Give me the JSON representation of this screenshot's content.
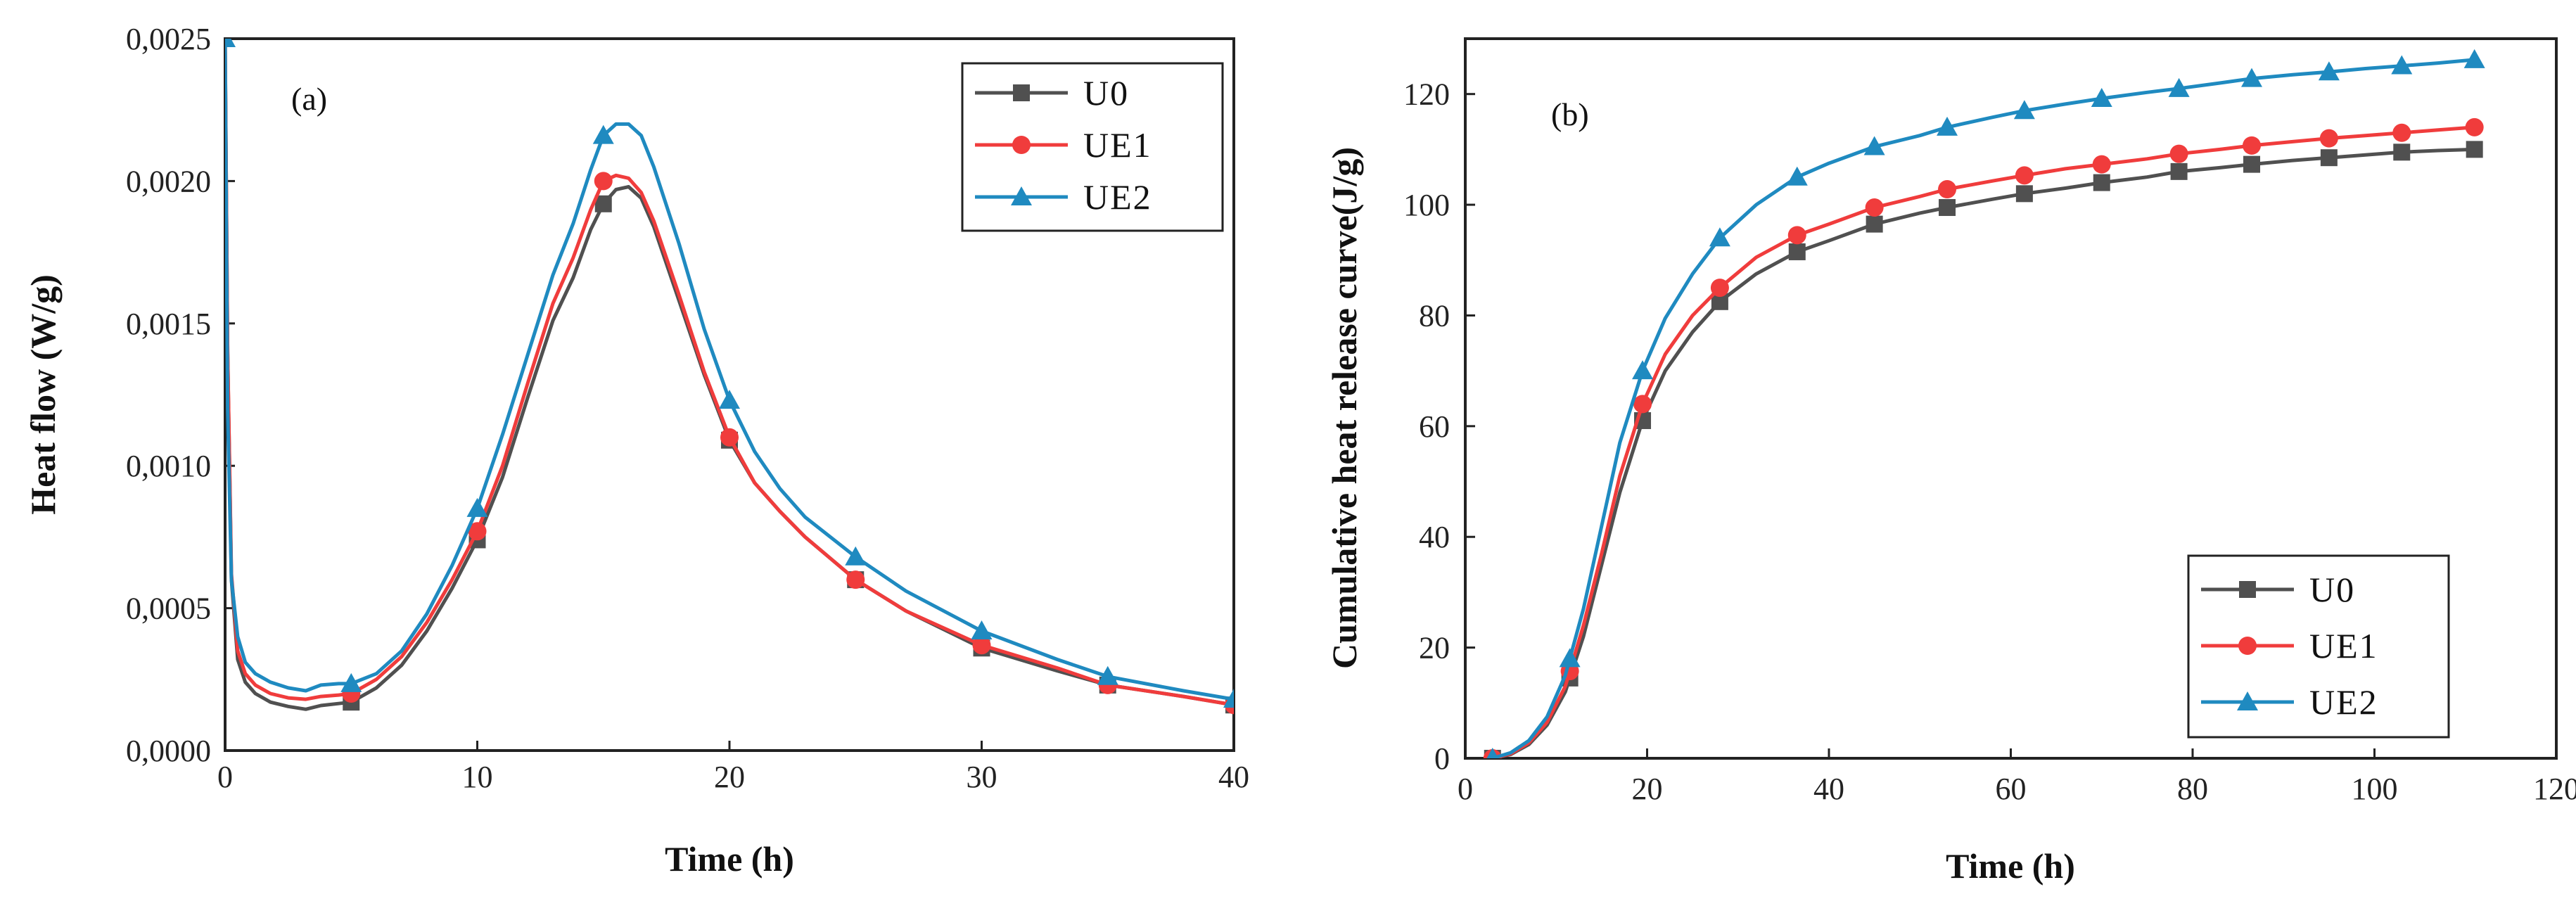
{
  "chart_data": [
    {
      "panel": "(a)",
      "type": "line",
      "xlabel": "Time (h)",
      "ylabel": "Heat  flow (W/g)",
      "xlim": [
        0,
        40
      ],
      "ylim": [
        0,
        0.0025
      ],
      "x_ticks": [
        0,
        10,
        20,
        30,
        40
      ],
      "x_tick_labels": [
        "0",
        "10",
        "20",
        "30",
        "40"
      ],
      "y_ticks": [
        0,
        0.0005,
        0.001,
        0.0015,
        0.002,
        0.0025
      ],
      "y_tick_labels": [
        "0,0000",
        "0,0005",
        "0,0010",
        "0,0015",
        "0,0020",
        "0,0025"
      ],
      "grid": false,
      "legend_position": "top-right",
      "series": [
        {
          "name": "U0",
          "color": "#505050",
          "marker": "square",
          "x": [
            0,
            0.1,
            0.25,
            0.5,
            0.8,
            1.2,
            1.8,
            2.5,
            3.2,
            3.8,
            4.5,
            5,
            6,
            7,
            8,
            9,
            10,
            11,
            12,
            13,
            13.8,
            14.5,
            15,
            15.5,
            16,
            16.5,
            17,
            18,
            19,
            20,
            21,
            22,
            23,
            25,
            27,
            30,
            33,
            35,
            38,
            40
          ],
          "y": [
            0.0025,
            0.0014,
            0.0006,
            0.00032,
            0.00024,
            0.0002,
            0.00017,
            0.000155,
            0.000145,
            0.000158,
            0.000165,
            0.00017,
            0.00022,
            0.0003,
            0.00042,
            0.00057,
            0.00074,
            0.00096,
            0.00124,
            0.00151,
            0.00166,
            0.00183,
            0.00192,
            0.00197,
            0.00198,
            0.00194,
            0.00184,
            0.00158,
            0.00132,
            0.00109,
            0.00094,
            0.00084,
            0.00075,
            0.0006,
            0.00049,
            0.00036,
            0.00028,
            0.00023,
            0.00019,
            0.00016
          ],
          "markers_x": [
            5,
            10,
            15,
            20,
            25,
            30,
            35,
            40
          ]
        },
        {
          "name": "UE1",
          "color": "#f03c3c",
          "marker": "circle",
          "x": [
            0,
            0.1,
            0.25,
            0.5,
            0.8,
            1.2,
            1.8,
            2.5,
            3.2,
            3.8,
            4.5,
            5,
            6,
            7,
            8,
            9,
            10,
            11,
            12,
            13,
            13.8,
            14.5,
            15,
            15.5,
            16,
            16.5,
            17,
            18,
            19,
            20,
            21,
            22,
            23,
            25,
            27,
            30,
            33,
            35,
            38,
            40
          ],
          "y": [
            0.0025,
            0.0014,
            0.00062,
            0.00035,
            0.00027,
            0.00023,
            0.0002,
            0.000185,
            0.00018,
            0.00019,
            0.000195,
            0.0002,
            0.00025,
            0.00033,
            0.00045,
            0.0006,
            0.00077,
            0.001,
            0.00129,
            0.00157,
            0.00173,
            0.0019,
            0.002,
            0.00202,
            0.00201,
            0.00196,
            0.00186,
            0.0016,
            0.00133,
            0.0011,
            0.00094,
            0.00084,
            0.00075,
            0.0006,
            0.00049,
            0.00037,
            0.00029,
            0.00023,
            0.00019,
            0.00016
          ],
          "markers_x": [
            5,
            10,
            15,
            20,
            25,
            30,
            35,
            40
          ]
        },
        {
          "name": "UE2",
          "color": "#1f8ac0",
          "marker": "triangle",
          "x": [
            0,
            0.1,
            0.25,
            0.5,
            0.8,
            1.2,
            1.8,
            2.5,
            3.2,
            3.8,
            4.5,
            5,
            6,
            7,
            8,
            9,
            10,
            11,
            12,
            13,
            13.8,
            14.5,
            15,
            15.5,
            16,
            16.5,
            17,
            18,
            19,
            20,
            21,
            22,
            23,
            25,
            27,
            30,
            33,
            35,
            38,
            40
          ],
          "y": [
            0.0025,
            0.0012,
            0.0006,
            0.0004,
            0.00031,
            0.00027,
            0.00024,
            0.00022,
            0.00021,
            0.00023,
            0.000235,
            0.000235,
            0.00027,
            0.00035,
            0.00048,
            0.00065,
            0.00085,
            0.00111,
            0.00139,
            0.00167,
            0.00185,
            0.00204,
            0.00216,
            0.0022,
            0.0022,
            0.00216,
            0.00205,
            0.00178,
            0.00148,
            0.00123,
            0.00105,
            0.00092,
            0.00082,
            0.00068,
            0.00056,
            0.00042,
            0.00032,
            0.00026,
            0.00021,
            0.00018
          ],
          "markers_x": [
            0,
            5,
            10,
            15,
            20,
            25,
            30,
            35,
            40
          ]
        }
      ]
    },
    {
      "panel": "(b)",
      "type": "line",
      "xlabel": "Time (h)",
      "ylabel": "Cumulative heat release curve(J/g)",
      "xlim": [
        0,
        120
      ],
      "ylim": [
        0,
        130
      ],
      "x_ticks": [
        0,
        20,
        40,
        60,
        80,
        100,
        120
      ],
      "x_tick_labels": [
        "0",
        "20",
        "40",
        "60",
        "80",
        "100",
        "120"
      ],
      "y_ticks": [
        0,
        20,
        40,
        60,
        80,
        100,
        120
      ],
      "y_tick_labels": [
        "0",
        "20",
        "40",
        "60",
        "80",
        "100",
        "120"
      ],
      "grid": false,
      "legend_position": "bottom-right",
      "series": [
        {
          "name": "U0",
          "color": "#505050",
          "marker": "square",
          "x": [
            3,
            5,
            7,
            9,
            11,
            13,
            15,
            17,
            19.5,
            22,
            25,
            28,
            32,
            36.5,
            40,
            45,
            50,
            53,
            58,
            61.5,
            66,
            70,
            75,
            78.5,
            83,
            86.5,
            91,
            95,
            99,
            103,
            107,
            111
          ],
          "y": [
            0,
            0.7,
            2.5,
            6,
            12,
            22,
            35,
            48,
            61,
            70,
            77,
            82.5,
            87.5,
            91.5,
            93.5,
            96.5,
            98.5,
            99.5,
            101,
            102,
            103,
            104,
            105,
            106,
            106.7,
            107.3,
            108,
            108.5,
            109,
            109.5,
            109.8,
            110
          ],
          "markers_x": [
            3,
            11.5,
            19.5,
            28,
            36.5,
            45,
            53,
            61.5,
            70,
            78.5,
            86.5,
            95,
            103,
            111
          ]
        },
        {
          "name": "UE1",
          "color": "#f03c3c",
          "marker": "circle",
          "x": [
            3,
            5,
            7,
            9,
            11,
            13,
            15,
            17,
            19.5,
            22,
            25,
            28,
            32,
            36.5,
            40,
            45,
            50,
            53,
            58,
            61.5,
            66,
            70,
            75,
            78.5,
            83,
            86.5,
            91,
            95,
            99,
            103,
            107,
            111
          ],
          "y": [
            0,
            0.8,
            2.8,
            6.5,
            13,
            24,
            37,
            51,
            64,
            73,
            80,
            85,
            90.5,
            94.5,
            96.5,
            99.5,
            101.5,
            102.8,
            104.3,
            105.3,
            106.5,
            107.3,
            108.3,
            109.2,
            110,
            110.7,
            111.4,
            112,
            112.5,
            113,
            113.5,
            114
          ],
          "markers_x": [
            3,
            11.5,
            19.5,
            28,
            36.5,
            45,
            53,
            61.5,
            70,
            78.5,
            86.5,
            95,
            103,
            111
          ]
        },
        {
          "name": "UE2",
          "color": "#1f8ac0",
          "marker": "triangle",
          "x": [
            3,
            5,
            7,
            9,
            11,
            13,
            15,
            17,
            19.5,
            22,
            25,
            28,
            32,
            36.5,
            40,
            45,
            50,
            53,
            58,
            61.5,
            66,
            70,
            75,
            78.5,
            83,
            86.5,
            91,
            95,
            99,
            103,
            107,
            111
          ],
          "y": [
            0,
            1,
            3.2,
            7.5,
            15,
            27,
            42,
            57,
            70,
            79.5,
            87.5,
            94,
            100,
            105,
            107.5,
            110.5,
            112.5,
            114,
            115.8,
            117,
            118.2,
            119.2,
            120.3,
            121,
            122,
            122.8,
            123.5,
            124,
            124.6,
            125.1,
            125.6,
            126.2
          ],
          "markers_x": [
            3,
            11.5,
            19.5,
            28,
            36.5,
            45,
            53,
            61.5,
            70,
            78.5,
            86.5,
            95,
            103,
            111
          ]
        }
      ]
    }
  ]
}
